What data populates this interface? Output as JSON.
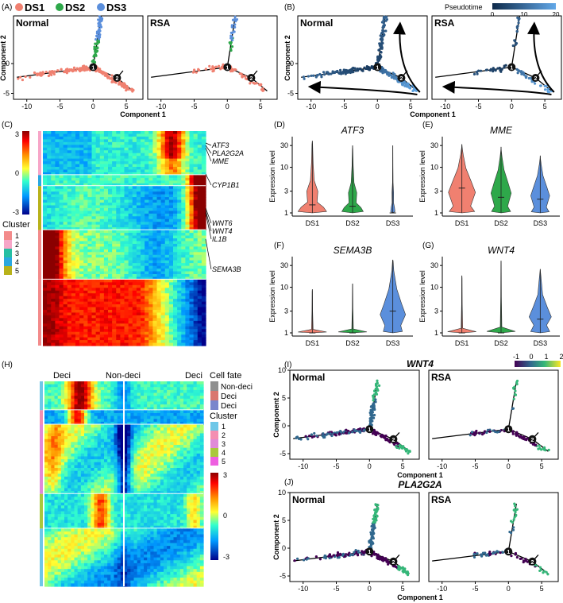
{
  "panels": {
    "A": {
      "label": "(A)",
      "legend": [
        {
          "name": "DS1",
          "color": "#f08070"
        },
        {
          "name": "DS2",
          "color": "#2ea84a"
        },
        {
          "name": "DS3",
          "color": "#5b8fdc"
        }
      ]
    },
    "B": {
      "label": "(B)",
      "colorbar_title": "Pseudotime",
      "colorbar_ticks": [
        "0",
        "10",
        "20"
      ],
      "color_low": "#0e2a4a",
      "color_high": "#62a8e8"
    },
    "C": {
      "label": "(C)",
      "scale_ticks": [
        "3",
        "0",
        "-3"
      ],
      "cluster_title": "Cluster",
      "clusters": [
        "1",
        "2",
        "3",
        "4",
        "5"
      ],
      "cluster_colors": [
        "#f38b8b",
        "#f7a6c8",
        "#26bfa3",
        "#2aa8e0",
        "#b8b21a"
      ],
      "genes": [
        "ATF3",
        "PLA2G2A",
        "MME",
        "CYP1B1",
        "WNT6",
        "WNT4",
        "IL1B",
        "SEMA3B"
      ]
    },
    "D": {
      "label": "(D)",
      "title": "ATF3"
    },
    "E": {
      "label": "(E)",
      "title": "MME"
    },
    "F": {
      "label": "(F)",
      "title": "SEMA3B"
    },
    "G": {
      "label": "(G)",
      "title": "WNT4"
    },
    "H": {
      "label": "(H)",
      "top_labels": [
        "Deci",
        "Non-deci",
        "Deci"
      ],
      "fate_title": "Cell fate",
      "fate_items": [
        "Non-deci",
        "Deci",
        "Deci"
      ],
      "fate_colors": [
        "#8f8f8f",
        "#d9776f",
        "#7a86cc"
      ],
      "cluster_title": "Cluster",
      "clusters": [
        "1",
        "2",
        "3",
        "4",
        "5"
      ],
      "cluster_colors": [
        "#6ec7e8",
        "#f48fb1",
        "#e08ad8",
        "#a9c83c",
        "#ee5fe0"
      ],
      "scale_ticks": [
        "3",
        "0",
        "-3"
      ]
    },
    "I": {
      "label": "(I)",
      "title": "WNT4",
      "colorbar_ticks": [
        "-1",
        "0",
        "1",
        "2"
      ]
    },
    "J": {
      "label": "(J)",
      "title": "PLA2G2A"
    }
  },
  "trajectory_axes": {
    "xlabel": "Component 1",
    "ylabel": "Component 2",
    "x_ticks": [
      "-10",
      "-5",
      "0",
      "5"
    ],
    "y_ticks": [
      "0",
      "-5"
    ],
    "y_ticks_ij": [
      "10",
      "5",
      "0",
      "-5"
    ],
    "xlim": [
      -12,
      7.5
    ],
    "ylim": [
      -6,
      8
    ],
    "ylim_ij": [
      -6,
      10
    ],
    "branch_labels": [
      "1",
      "2"
    ]
  },
  "conditions": [
    "Normal",
    "RSA"
  ],
  "violin_axes": {
    "ylabel": "Expression level",
    "categories": [
      "DS1",
      "DS2",
      "DS3"
    ],
    "colors": [
      "#f08070",
      "#2ea84a",
      "#5b8fdc"
    ],
    "ticks_de": [
      "1",
      "3",
      "10",
      "30"
    ],
    "ticks_fg": [
      "1",
      "3",
      "10",
      "30"
    ]
  },
  "chart_data": [
    {
      "type": "violin",
      "panel": "D",
      "title": "ATF3",
      "ylabel": "Expression level",
      "yscale": "log",
      "categories": [
        "DS1",
        "DS2",
        "DS3"
      ],
      "ylim": [
        1,
        40
      ],
      "series": [
        {
          "values": [
            38,
            1.5
          ]
        },
        {
          "values": [
            30,
            1.4
          ]
        },
        {
          "values": [
            30,
            1.0
          ]
        }
      ]
    },
    {
      "type": "violin",
      "panel": "E",
      "title": "MME",
      "ylabel": "Expression level",
      "yscale": "log",
      "categories": [
        "DS1",
        "DS2",
        "DS3"
      ],
      "ylim": [
        1,
        40
      ],
      "series": [
        {
          "values": [
            32,
            3.5
          ]
        },
        {
          "values": [
            28,
            2.2
          ]
        },
        {
          "values": [
            18,
            2.0
          ]
        }
      ]
    },
    {
      "type": "violin",
      "panel": "F",
      "title": "SEMA3B",
      "ylabel": "Expression level",
      "yscale": "log",
      "categories": [
        "DS1",
        "DS2",
        "DS3"
      ],
      "ylim": [
        1,
        40
      ],
      "series": [
        {
          "values": [
            9,
            1.0
          ]
        },
        {
          "values": [
            12,
            1.0
          ]
        },
        {
          "values": [
            40,
            3.0
          ]
        }
      ]
    },
    {
      "type": "violin",
      "panel": "G",
      "title": "WNT4",
      "ylabel": "Expression level",
      "yscale": "log",
      "categories": [
        "DS1",
        "DS2",
        "DS3"
      ],
      "ylim": [
        1,
        40
      ],
      "series": [
        {
          "values": [
            18,
            1.0
          ]
        },
        {
          "values": [
            38,
            1.0
          ]
        },
        {
          "values": [
            25,
            2.0
          ]
        }
      ]
    }
  ]
}
